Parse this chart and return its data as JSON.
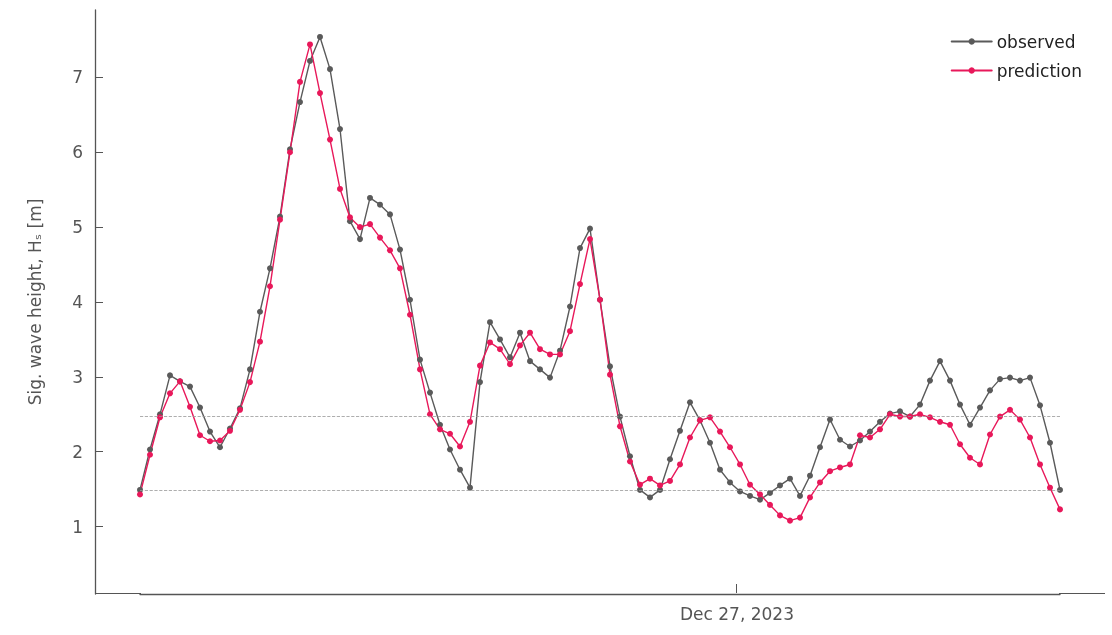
{
  "chart_data": {
    "type": "line",
    "ylabel": "Sig. wave height, Hₛ [m]",
    "ylim": [
      0.1,
      7.9
    ],
    "yticks": [
      1,
      2,
      3,
      4,
      5,
      6,
      7
    ],
    "annotations": [
      "Dec 27, 2023"
    ],
    "categories": [
      null,
      null,
      null,
      null,
      null,
      null,
      null,
      null,
      null,
      null,
      null,
      null,
      null,
      null,
      null,
      null,
      null,
      null,
      null,
      null,
      null,
      null,
      null,
      null,
      null,
      null,
      null,
      null,
      null,
      null,
      null,
      null,
      null,
      null,
      null,
      null,
      null,
      null,
      null,
      null,
      null,
      null,
      null,
      null,
      null,
      null,
      null,
      null,
      null,
      null,
      null,
      null,
      null,
      null,
      null,
      null,
      null,
      null,
      null,
      null,
      null,
      null,
      null,
      null,
      null,
      null,
      null,
      null,
      null,
      null,
      null,
      null,
      null,
      null,
      null,
      null,
      null,
      null,
      null,
      null,
      null,
      null,
      null,
      null,
      null,
      null,
      null,
      null,
      null,
      null,
      null,
      null,
      null
    ],
    "grid": false,
    "legend": "top right",
    "marker": "circle",
    "line_style": "solid",
    "ref_lines": [
      {
        "axis": "y",
        "value": 2.48,
        "color": "#999999",
        "line_style": "dashed"
      },
      {
        "axis": "y",
        "value": 1.48,
        "color": "#999999",
        "line_style": "dashed"
      }
    ],
    "series": [
      {
        "name": "observed",
        "color": "#5a5a5a",
        "values": [
          1.49,
          2.03,
          2.5,
          3.02,
          2.94,
          2.87,
          2.59,
          2.27,
          2.06,
          2.31,
          2.58,
          3.1,
          3.87,
          4.45,
          5.14,
          6.04,
          6.67,
          7.22,
          7.54,
          7.11,
          6.31,
          5.08,
          4.84,
          5.39,
          5.3,
          5.17,
          4.7,
          4.03,
          3.23,
          2.79,
          2.36,
          2.03,
          1.76,
          1.52,
          2.93,
          3.73,
          3.5,
          3.26,
          3.59,
          3.21,
          3.1,
          2.99,
          3.35,
          3.94,
          4.72,
          4.98,
          4.03,
          3.14,
          2.47,
          1.94,
          1.49,
          1.39,
          1.49,
          1.9,
          2.28,
          2.66,
          2.42,
          2.12,
          1.76,
          1.59,
          1.47,
          1.41,
          1.36,
          1.45,
          1.55,
          1.64,
          1.41,
          1.68,
          2.06,
          2.43,
          2.16,
          2.07,
          2.15,
          2.27,
          2.4,
          2.51,
          2.54,
          2.47,
          2.63,
          2.95,
          3.21,
          2.95,
          2.63,
          2.36,
          2.59,
          2.82,
          2.97,
          2.99,
          2.95,
          2.99,
          2.62,
          2.12,
          1.49
        ]
      },
      {
        "name": "prediction",
        "color": "#e8185a",
        "values": [
          1.43,
          1.96,
          2.46,
          2.78,
          2.94,
          2.6,
          2.22,
          2.14,
          2.15,
          2.28,
          2.56,
          2.93,
          3.47,
          4.21,
          5.1,
          6.0,
          6.94,
          7.44,
          6.79,
          6.17,
          5.51,
          5.13,
          5.0,
          5.04,
          4.86,
          4.69,
          4.45,
          3.83,
          3.1,
          2.5,
          2.3,
          2.24,
          2.07,
          2.4,
          3.15,
          3.46,
          3.37,
          3.17,
          3.42,
          3.59,
          3.37,
          3.3,
          3.3,
          3.61,
          4.24,
          4.84,
          4.03,
          3.03,
          2.34,
          1.87,
          1.56,
          1.64,
          1.55,
          1.61,
          1.83,
          2.19,
          2.42,
          2.46,
          2.27,
          2.06,
          1.83,
          1.56,
          1.43,
          1.29,
          1.15,
          1.08,
          1.12,
          1.39,
          1.59,
          1.74,
          1.79,
          1.83,
          2.22,
          2.19,
          2.3,
          2.5,
          2.47,
          2.47,
          2.5,
          2.46,
          2.4,
          2.36,
          2.1,
          1.92,
          1.83,
          2.23,
          2.47,
          2.56,
          2.43,
          2.19,
          1.83,
          1.52,
          1.23
        ]
      }
    ]
  }
}
